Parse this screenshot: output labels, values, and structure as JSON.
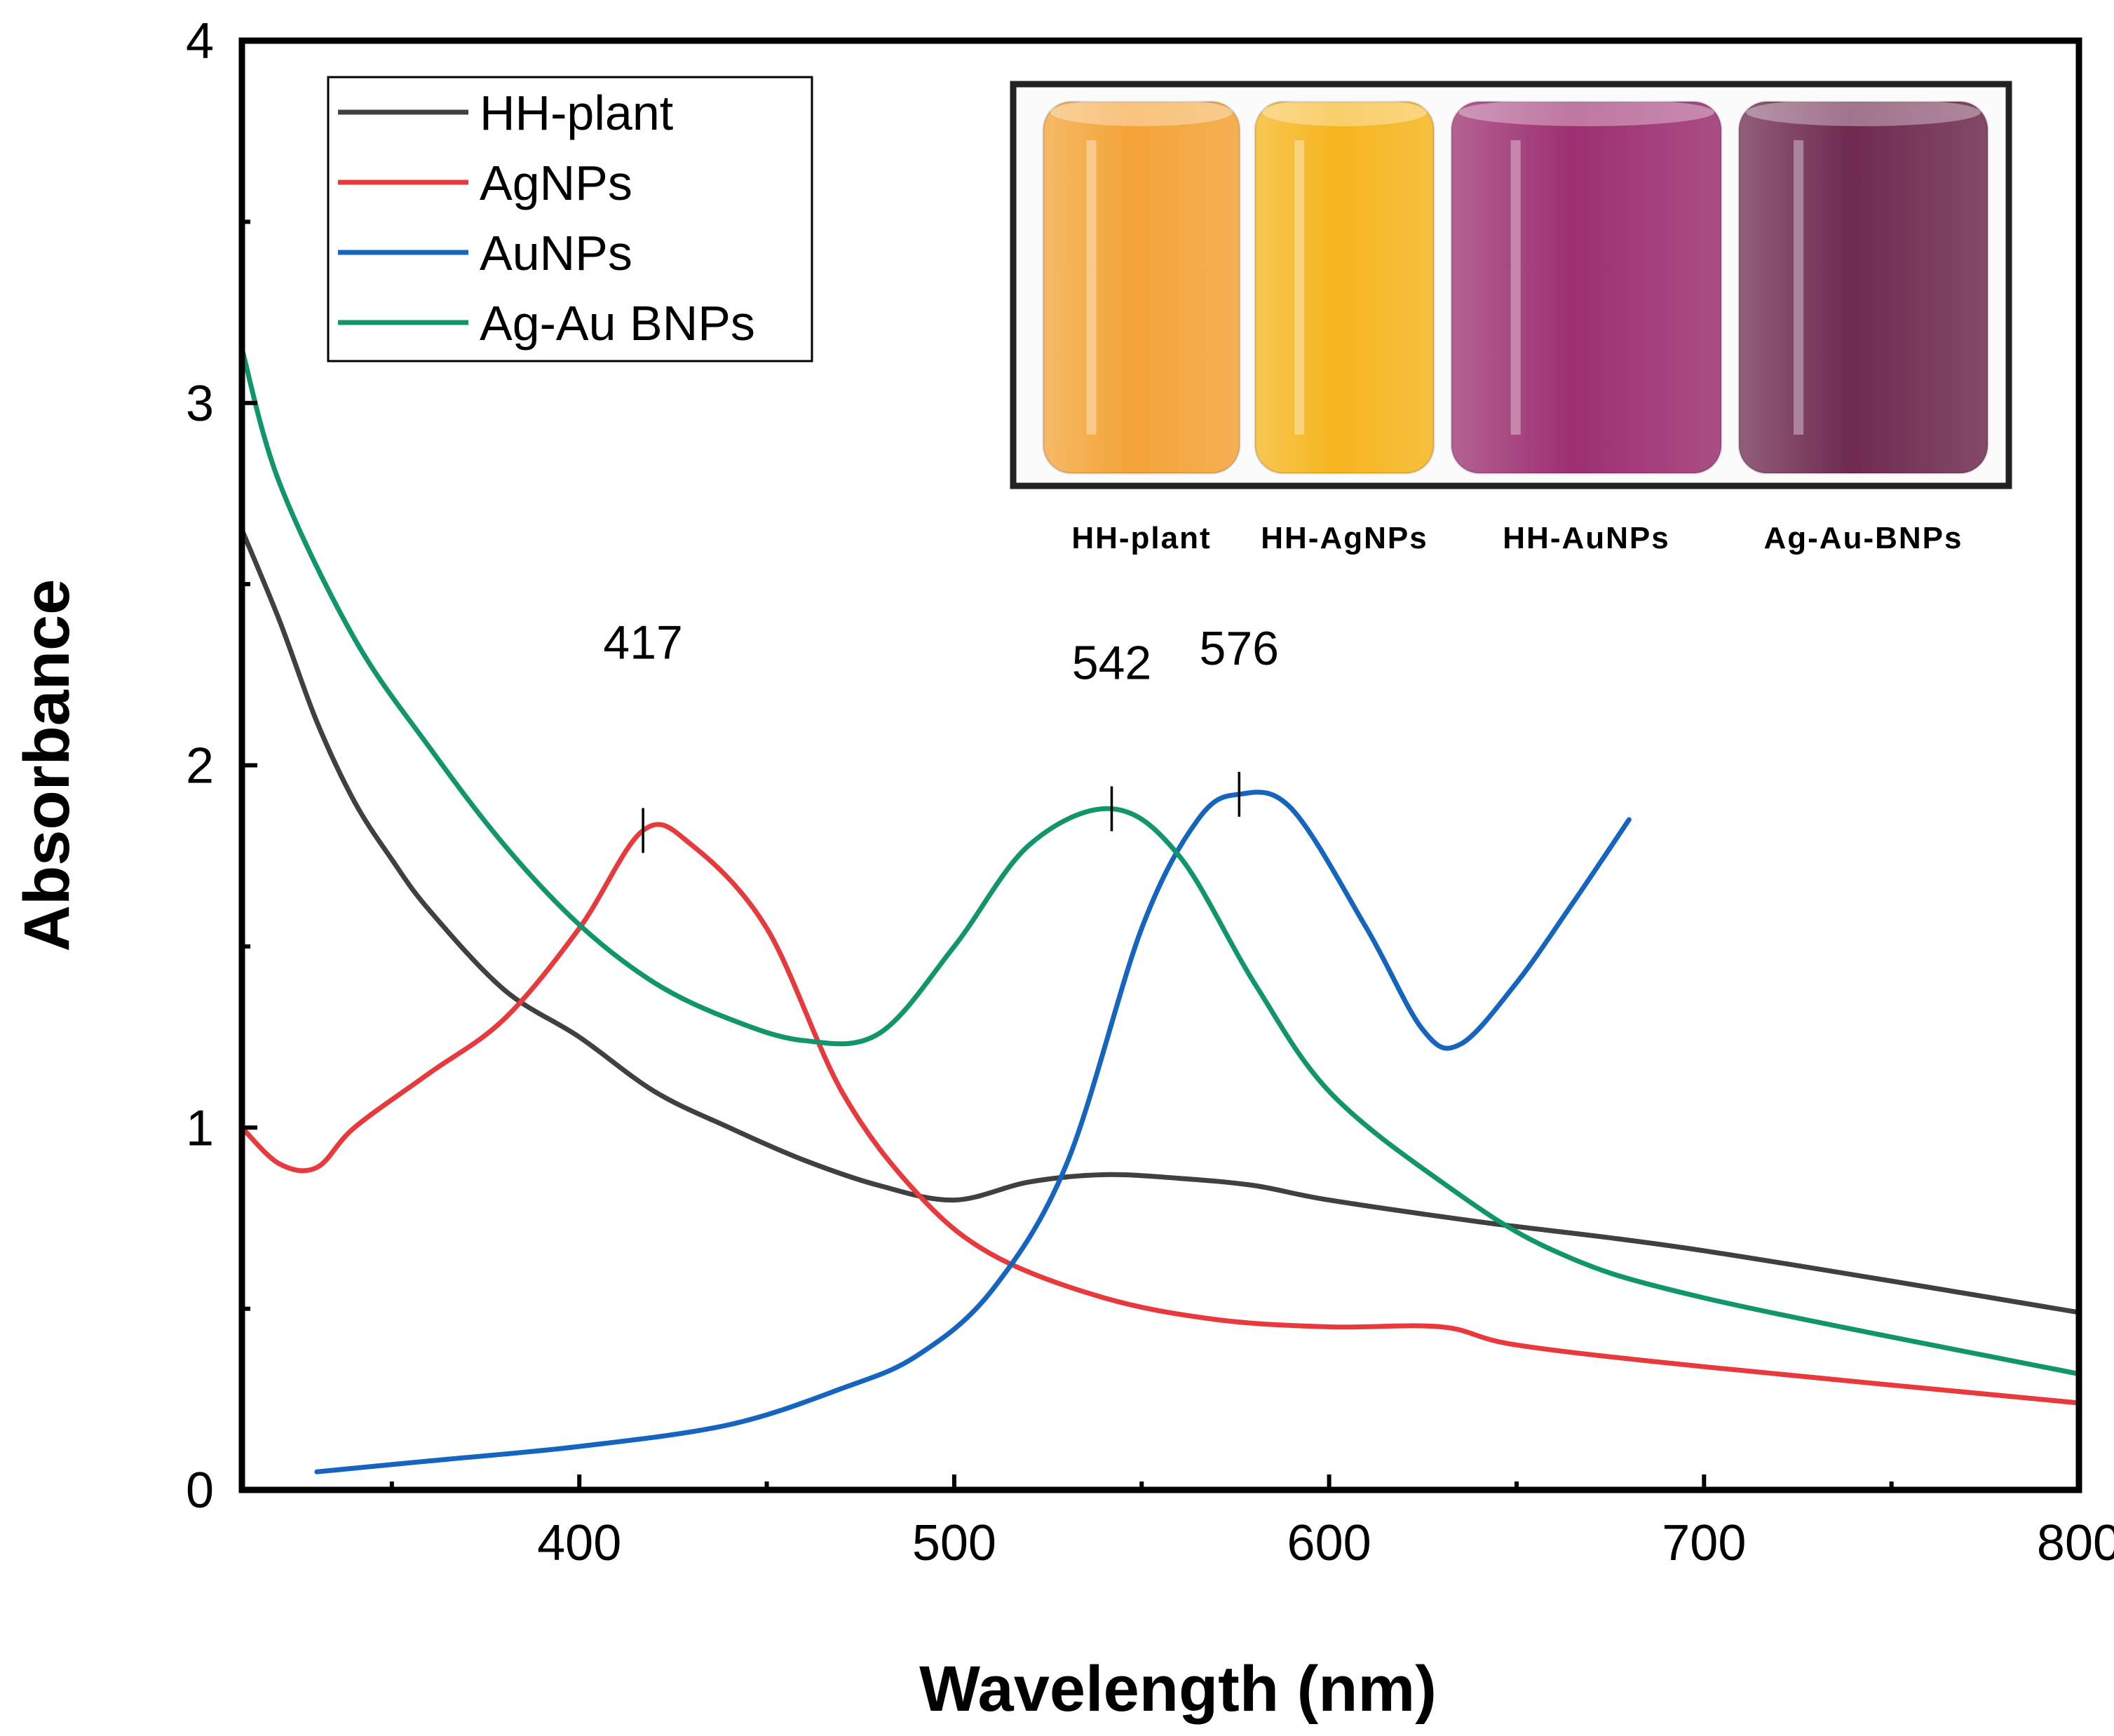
{
  "chart_data": {
    "type": "line",
    "title": "",
    "xlabel": "Wavelength (nm)",
    "ylabel": "Absorbance",
    "xlim": [
      310,
      800
    ],
    "ylim": [
      0,
      4
    ],
    "x_ticks": [
      400,
      500,
      600,
      700,
      800
    ],
    "y_ticks": [
      0,
      1,
      2,
      3,
      4
    ],
    "grid": false,
    "legend_position": "top-left",
    "series": [
      {
        "name": "HH-plant",
        "color": "#404040",
        "x": [
          310,
          320,
          330,
          340,
          350,
          360,
          380,
          400,
          420,
          440,
          460,
          480,
          500,
          520,
          540,
          560,
          580,
          600,
          640,
          700,
          800
        ],
        "y": [
          2.65,
          2.4,
          2.12,
          1.9,
          1.74,
          1.6,
          1.38,
          1.25,
          1.1,
          1.0,
          0.91,
          0.84,
          0.8,
          0.85,
          0.87,
          0.86,
          0.84,
          0.8,
          0.74,
          0.66,
          0.49
        ]
      },
      {
        "name": "AgNPs",
        "color": "#e8393d",
        "x": [
          310,
          320,
          330,
          340,
          360,
          380,
          400,
          417,
          430,
          450,
          470,
          490,
          510,
          540,
          570,
          600,
          630,
          650,
          700,
          800
        ],
        "y": [
          1.0,
          0.9,
          0.89,
          1.0,
          1.15,
          1.3,
          1.55,
          1.82,
          1.78,
          1.55,
          1.1,
          0.82,
          0.65,
          0.53,
          0.47,
          0.45,
          0.45,
          0.4,
          0.34,
          0.24
        ]
      },
      {
        "name": "AuNPs",
        "color": "#1565c0",
        "x": [
          330,
          360,
          400,
          440,
          470,
          490,
          510,
          530,
          550,
          565,
          576,
          590,
          610,
          625,
          635,
          650,
          665,
          680
        ],
        "y": [
          0.05,
          0.08,
          0.12,
          0.18,
          0.28,
          0.37,
          0.55,
          0.9,
          1.55,
          1.85,
          1.92,
          1.88,
          1.55,
          1.27,
          1.23,
          1.4,
          1.62,
          1.85
        ]
      },
      {
        "name": "Ag-Au BNPs",
        "color": "#11966b",
        "x": [
          310,
          320,
          340,
          360,
          380,
          400,
          420,
          440,
          460,
          480,
          500,
          520,
          542,
          560,
          580,
          600,
          630,
          660,
          700,
          800
        ],
        "y": [
          3.15,
          2.78,
          2.35,
          2.05,
          1.78,
          1.56,
          1.4,
          1.3,
          1.24,
          1.26,
          1.5,
          1.78,
          1.88,
          1.75,
          1.4,
          1.1,
          0.85,
          0.66,
          0.53,
          0.32
        ]
      }
    ],
    "annotations": [
      {
        "text": "417",
        "x": 417,
        "y": 1.82
      },
      {
        "text": "542",
        "x": 542,
        "y": 1.88
      },
      {
        "text": "576",
        "x": 576,
        "y": 1.92
      }
    ],
    "inset": {
      "labels": [
        "HH-plant",
        "HH-AgNPs",
        "HH-AuNPs",
        "Ag-Au-BNPs"
      ],
      "colors": [
        "#f4a336",
        "#f6b51d",
        "#9c2f70",
        "#6e2a4f"
      ]
    }
  }
}
